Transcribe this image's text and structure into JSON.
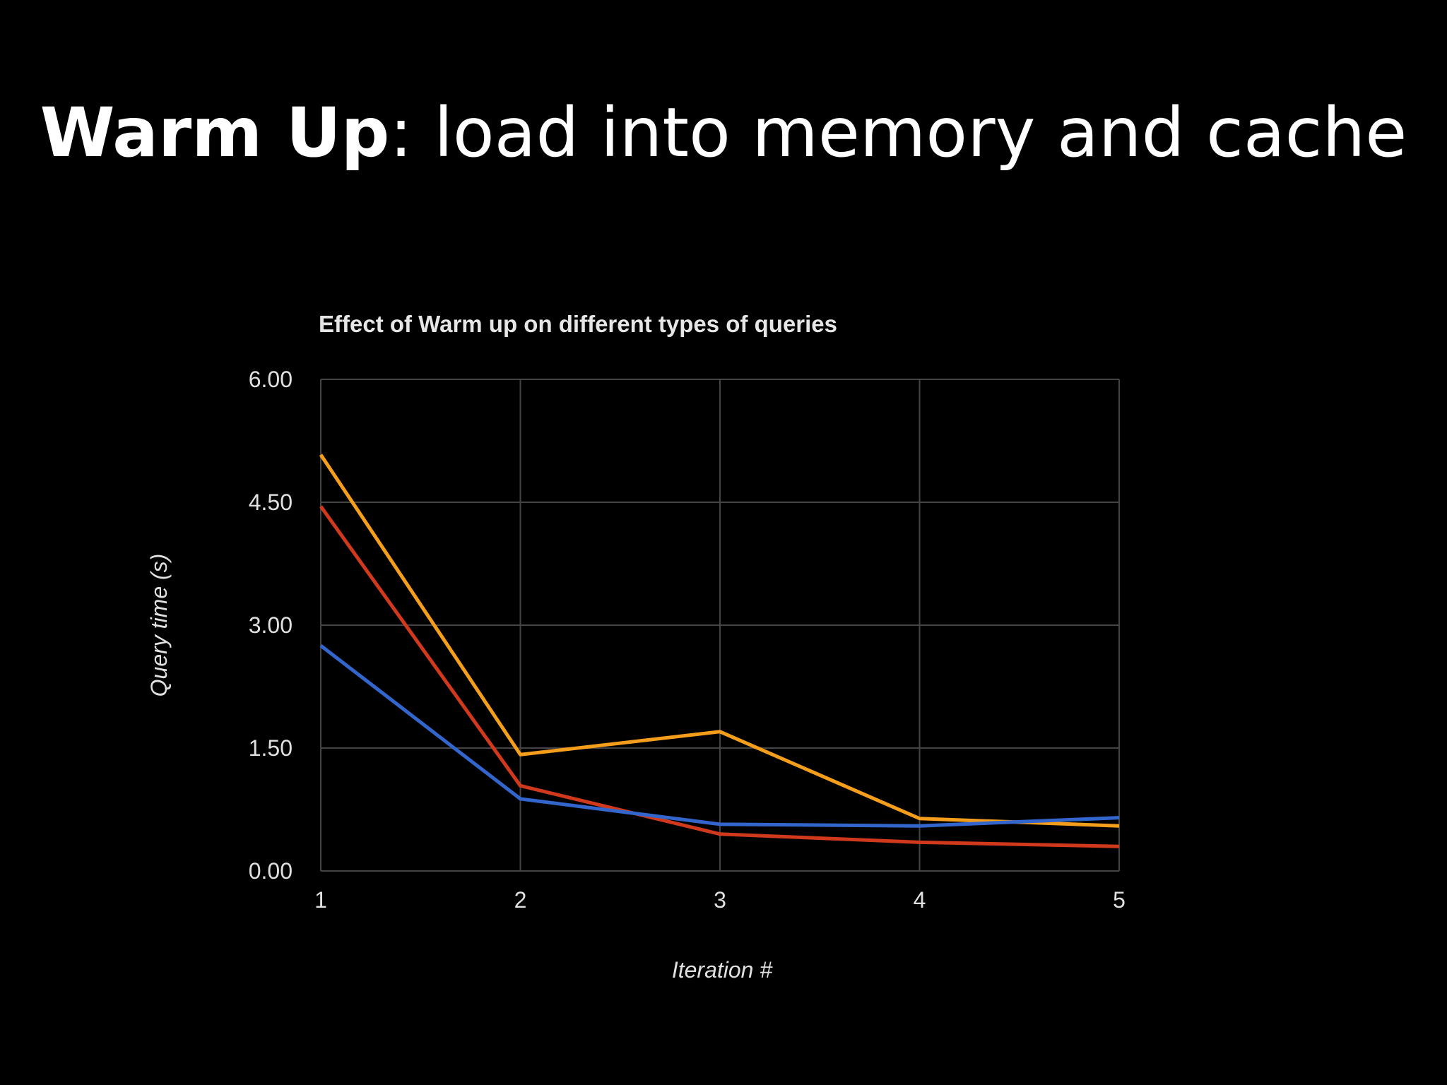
{
  "slide": {
    "title_bold": "Warm Up",
    "title_rest": ": load into memory and cache"
  },
  "chart_data": {
    "type": "line",
    "title": "Effect of Warm up on different types of queries",
    "xlabel": "Iteration #",
    "ylabel": "Query time (s)",
    "x": [
      1,
      2,
      3,
      4,
      5
    ],
    "x_tick_labels": [
      "1",
      "2",
      "3",
      "4",
      "5"
    ],
    "y_tick_labels": [
      "0.00",
      "1.50",
      "3.00",
      "4.50",
      "6.00"
    ],
    "y_ticks": [
      0,
      1.5,
      3,
      4.5,
      6
    ],
    "ylim": [
      0,
      6
    ],
    "xlim": [
      1,
      5
    ],
    "grid": true,
    "legend": "none",
    "series": [
      {
        "color": "#f59e1b",
        "values": [
          5.08,
          1.42,
          1.7,
          0.64,
          0.55
        ]
      },
      {
        "color": "#d0391c",
        "values": [
          4.45,
          1.04,
          0.45,
          0.35,
          0.3
        ]
      },
      {
        "color": "#3366cc",
        "values": [
          2.75,
          0.88,
          0.57,
          0.55,
          0.65
        ]
      }
    ],
    "colors": {
      "background": "#000000",
      "grid": "#444444",
      "axis": "#555555",
      "text": "#e0e0e0"
    }
  }
}
